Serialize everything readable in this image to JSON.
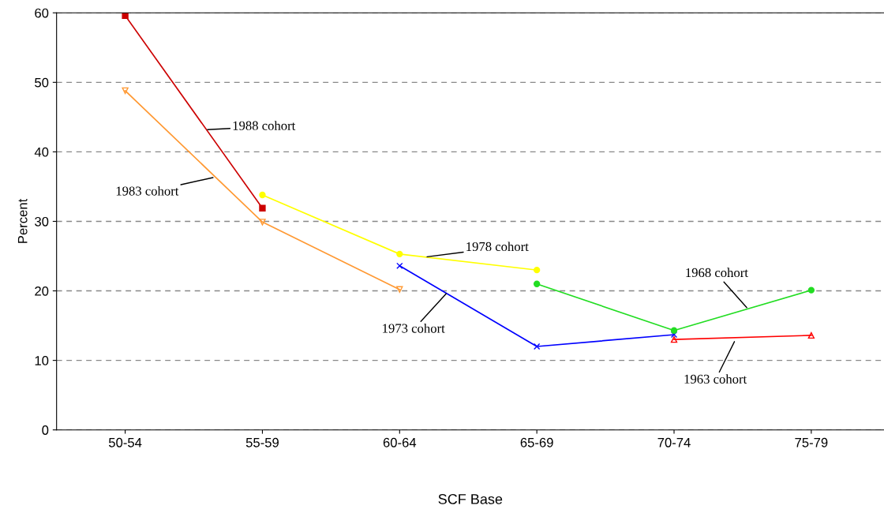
{
  "chart_data": {
    "type": "line",
    "xlabel": "SCF Base",
    "ylabel": "Percent",
    "categories": [
      "50-54",
      "55-59",
      "60-64",
      "65-69",
      "70-74",
      "75-79"
    ],
    "series": [
      {
        "name": "1988 cohort",
        "color": "#cc0000",
        "marker": "square",
        "values": [
          59.6,
          31.9,
          null,
          null,
          null,
          null
        ]
      },
      {
        "name": "1983 cohort",
        "color": "#ff9933",
        "marker": "triangle",
        "values": [
          48.8,
          29.9,
          20.2,
          null,
          null,
          null
        ]
      },
      {
        "name": "1978 cohort",
        "color": "#ffff00",
        "marker": "circle",
        "values": [
          null,
          33.8,
          25.3,
          23.0,
          null,
          null
        ]
      },
      {
        "name": "1973 cohort",
        "color": "#0000ff",
        "marker": "cross",
        "values": [
          null,
          null,
          23.6,
          12.0,
          13.7,
          null
        ]
      },
      {
        "name": "1968 cohort",
        "color": "#22dd22",
        "marker": "circle",
        "values": [
          null,
          null,
          null,
          21.0,
          14.3,
          20.1
        ]
      },
      {
        "name": "1963 cohort",
        "color": "#ff0000",
        "marker": "triangle",
        "values": [
          null,
          null,
          null,
          null,
          13.0,
          13.6
        ]
      }
    ],
    "ylim": [
      0,
      60
    ],
    "yticks": [
      0,
      10,
      20,
      30,
      40,
      50,
      60
    ],
    "grid": "y",
    "legend": false,
    "line_style": "solid"
  }
}
